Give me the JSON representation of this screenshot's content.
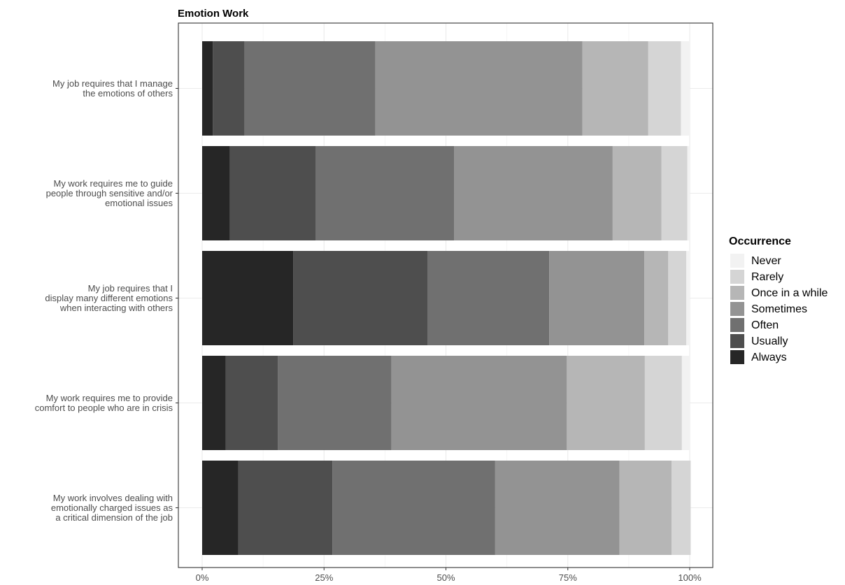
{
  "chart_data": {
    "type": "bar",
    "orientation": "horizontal",
    "stacked": true,
    "title": "Emotion Work",
    "xlabel": "",
    "ylabel": "",
    "xlim": [
      0,
      1
    ],
    "x_ticks": [
      "0%",
      "25%",
      "50%",
      "75%",
      "100%"
    ],
    "grid": true,
    "legend_title": "Occurrence",
    "legend_position": "right",
    "legend_order": [
      "Never",
      "Rarely",
      "Once in a while",
      "Sometimes",
      "Often",
      "Usually",
      "Always"
    ],
    "stack_order": [
      "Always",
      "Usually",
      "Often",
      "Sometimes",
      "Once in a while",
      "Rarely",
      "Never"
    ],
    "colors": {
      "Always": "#262626",
      "Usually": "#4e4e4e",
      "Often": "#707070",
      "Sometimes": "#939393",
      "Once in a while": "#b6b6b6",
      "Rarely": "#d5d5d5",
      "Never": "#f2f2f2"
    },
    "categories": [
      [
        "My job requires that I manage",
        "the emotions of others"
      ],
      [
        "My work requires me to guide",
        "people through sensitive and/or",
        "emotional issues"
      ],
      [
        "My job requires that I",
        "display many different emotions",
        "when interacting with others"
      ],
      [
        "My work requires me to provide",
        "comfort to people who are in crisis"
      ],
      [
        "My work involves dealing with",
        "emotionally charged issues as",
        "a critical dimension of the job"
      ]
    ],
    "series": [
      {
        "name": "Always",
        "values": [
          0.022,
          0.057,
          0.187,
          0.048,
          0.074
        ]
      },
      {
        "name": "Usually",
        "values": [
          0.065,
          0.176,
          0.275,
          0.107,
          0.193
        ]
      },
      {
        "name": "Often",
        "values": [
          0.268,
          0.284,
          0.25,
          0.233,
          0.334
        ]
      },
      {
        "name": "Sometimes",
        "values": [
          0.425,
          0.325,
          0.195,
          0.36,
          0.255
        ]
      },
      {
        "name": "Once in a while",
        "values": [
          0.135,
          0.1,
          0.049,
          0.16,
          0.107
        ]
      },
      {
        "name": "Rarely",
        "values": [
          0.067,
          0.053,
          0.037,
          0.076,
          0.039
        ]
      },
      {
        "name": "Never",
        "values": [
          0.018,
          0.005,
          0.007,
          0.016,
          0.0
        ]
      }
    ]
  }
}
